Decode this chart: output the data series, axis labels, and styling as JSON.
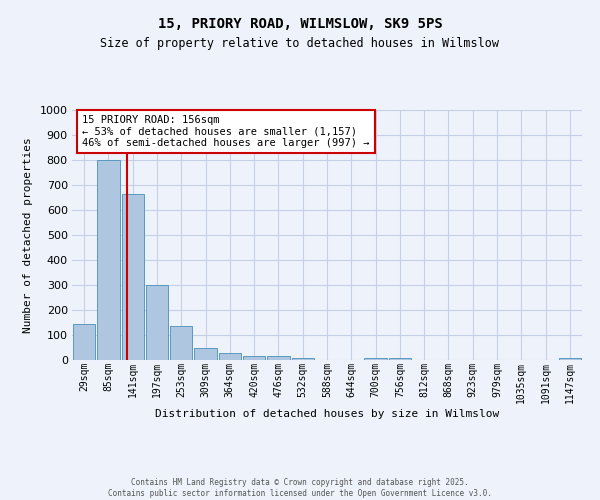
{
  "title_line1": "15, PRIORY ROAD, WILMSLOW, SK9 5PS",
  "title_line2": "Size of property relative to detached houses in Wilmslow",
  "xlabel": "Distribution of detached houses by size in Wilmslow",
  "ylabel": "Number of detached properties",
  "bin_labels": [
    "29sqm",
    "85sqm",
    "141sqm",
    "197sqm",
    "253sqm",
    "309sqm",
    "364sqm",
    "420sqm",
    "476sqm",
    "532sqm",
    "588sqm",
    "644sqm",
    "700sqm",
    "756sqm",
    "812sqm",
    "868sqm",
    "923sqm",
    "979sqm",
    "1035sqm",
    "1091sqm",
    "1147sqm"
  ],
  "bar_values": [
    145,
    800,
    665,
    300,
    135,
    50,
    28,
    18,
    18,
    10,
    0,
    0,
    10,
    10,
    0,
    0,
    0,
    0,
    0,
    0,
    10
  ],
  "bar_color": "#aec6df",
  "bar_edge_color": "#5a9abf",
  "vline_color": "#cc0000",
  "ylim": [
    0,
    1000
  ],
  "yticks": [
    0,
    100,
    200,
    300,
    400,
    500,
    600,
    700,
    800,
    900,
    1000
  ],
  "annotation_title": "15 PRIORY ROAD: 156sqm",
  "annotation_line1": "← 53% of detached houses are smaller (1,157)",
  "annotation_line2": "46% of semi-detached houses are larger (997) →",
  "annotation_box_color": "#cc0000",
  "footer_line1": "Contains HM Land Registry data © Crown copyright and database right 2025.",
  "footer_line2": "Contains public sector information licensed under the Open Government Licence v3.0.",
  "bg_color": "#eef2fa",
  "grid_color": "#c5cfe8"
}
